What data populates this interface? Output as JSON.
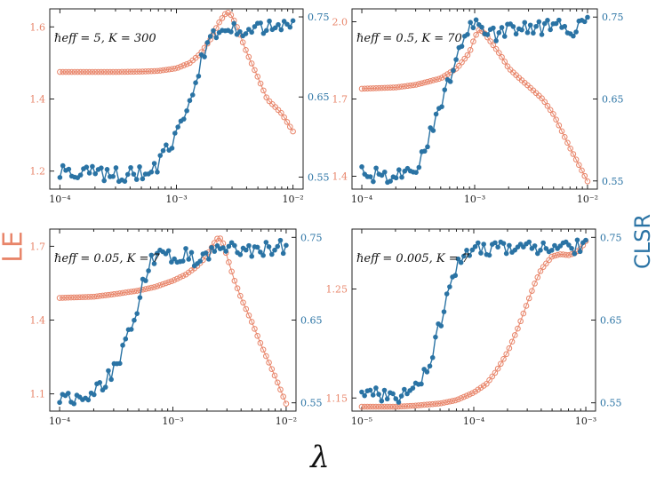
{
  "figure": {
    "ylabel_left": "LE",
    "ylabel_right": "CLSR",
    "xlabel": "λ",
    "colors": {
      "le": "#e8856a",
      "clsr": "#2a73a4"
    }
  },
  "chart_data": [
    {
      "type": "line",
      "title": "ℏeff = 5, K = 300",
      "xscale": "log",
      "xlim": [
        0.0001,
        0.01
      ],
      "xticks": [
        {
          "v": 0.0001,
          "l": "10⁻⁴"
        },
        {
          "v": 0.001,
          "l": "10⁻³"
        },
        {
          "v": 0.01,
          "l": "10⁻²"
        }
      ],
      "ylim_left": [
        1.15,
        1.65
      ],
      "yticks_left": [
        {
          "v": 1.2,
          "l": "1.2"
        },
        {
          "v": 1.4,
          "l": "1.4"
        },
        {
          "v": 1.6,
          "l": "1.6"
        }
      ],
      "ylim_right": [
        0.535,
        0.76
      ],
      "yticks_right": [
        {
          "v": 0.55,
          "l": "0.55"
        },
        {
          "v": 0.65,
          "l": "0.65"
        },
        {
          "v": 0.75,
          "l": "0.75"
        }
      ],
      "series": [
        {
          "key": "LE",
          "axis": "left",
          "marker": "open-circle",
          "x": [
            0.0001,
            0.0002,
            0.0003,
            0.0005,
            0.0007,
            0.001,
            0.0013,
            0.0016,
            0.002,
            0.0023,
            0.0026,
            0.0028,
            0.003,
            0.0033,
            0.004,
            0.005,
            0.006,
            0.008,
            0.01
          ],
          "y": [
            1.475,
            1.475,
            1.475,
            1.476,
            1.478,
            1.485,
            1.5,
            1.525,
            1.57,
            1.61,
            1.635,
            1.64,
            1.63,
            1.6,
            1.53,
            1.46,
            1.4,
            1.36,
            1.31
          ]
        },
        {
          "key": "CLSR",
          "axis": "right",
          "marker": "filled-circle",
          "x": [
            0.0001,
            0.00013,
            0.00018,
            0.00025,
            0.00035,
            0.0005,
            0.0006,
            0.0007,
            0.0008,
            0.0009,
            0.001,
            0.0012,
            0.0014,
            0.0016,
            0.0018,
            0.002,
            0.0025,
            0.003,
            0.004,
            0.005,
            0.006,
            0.008,
            0.01
          ],
          "y": [
            0.556,
            0.558,
            0.555,
            0.554,
            0.553,
            0.554,
            0.556,
            0.565,
            0.58,
            0.59,
            0.6,
            0.625,
            0.66,
            0.69,
            0.71,
            0.725,
            0.735,
            0.738,
            0.734,
            0.738,
            0.736,
            0.737,
            0.745
          ]
        }
      ]
    },
    {
      "type": "line",
      "title": "ℏeff = 0.5, K = 70",
      "xscale": "log",
      "xlim": [
        0.0001,
        0.01
      ],
      "xticks": [
        {
          "v": 0.0001,
          "l": "10⁻⁴"
        },
        {
          "v": 0.001,
          "l": "10⁻³"
        },
        {
          "v": 0.01,
          "l": "10⁻²"
        }
      ],
      "ylim_left": [
        1.35,
        2.05
      ],
      "yticks_left": [
        {
          "v": 1.4,
          "l": "1.4"
        },
        {
          "v": 1.7,
          "l": "1.7"
        },
        {
          "v": 2.0,
          "l": "2.0"
        }
      ],
      "ylim_right": [
        0.54,
        0.76
      ],
      "yticks_right": [
        {
          "v": 0.55,
          "l": "0.55"
        },
        {
          "v": 0.65,
          "l": "0.65"
        },
        {
          "v": 0.75,
          "l": "0.75"
        }
      ],
      "series": [
        {
          "key": "LE",
          "axis": "left",
          "marker": "open-circle",
          "x": [
            0.0001,
            0.0002,
            0.0003,
            0.0005,
            0.0007,
            0.0009,
            0.001,
            0.0011,
            0.0012,
            0.0014,
            0.0017,
            0.002,
            0.0025,
            0.003,
            0.004,
            0.005,
            0.007,
            0.01
          ],
          "y": [
            1.74,
            1.745,
            1.755,
            1.78,
            1.82,
            1.88,
            1.94,
            1.97,
            1.96,
            1.92,
            1.87,
            1.82,
            1.78,
            1.75,
            1.7,
            1.64,
            1.51,
            1.38
          ]
        },
        {
          "key": "CLSR",
          "axis": "right",
          "marker": "filled-circle",
          "x": [
            0.0001,
            0.00013,
            0.00018,
            0.00025,
            0.0003,
            0.00035,
            0.0004,
            0.00045,
            0.0005,
            0.0006,
            0.0007,
            0.0008,
            0.0009,
            0.001,
            0.0012,
            0.0015,
            0.002,
            0.003,
            0.004,
            0.006,
            0.008,
            0.01
          ],
          "y": [
            0.562,
            0.557,
            0.556,
            0.558,
            0.565,
            0.585,
            0.605,
            0.625,
            0.645,
            0.675,
            0.705,
            0.725,
            0.735,
            0.74,
            0.732,
            0.728,
            0.733,
            0.735,
            0.737,
            0.738,
            0.735,
            0.75
          ]
        }
      ]
    },
    {
      "type": "line",
      "title": "ℏeff = 0.05, K = 7",
      "xscale": "log",
      "xlim": [
        0.0001,
        0.01
      ],
      "xticks": [
        {
          "v": 0.0001,
          "l": "10⁻⁴"
        },
        {
          "v": 0.001,
          "l": "10⁻³"
        },
        {
          "v": 0.01,
          "l": "10⁻²"
        }
      ],
      "ylim_left": [
        1.03,
        1.77
      ],
      "yticks_left": [
        {
          "v": 1.1,
          "l": "1.1"
        },
        {
          "v": 1.4,
          "l": "1.4"
        },
        {
          "v": 1.7,
          "l": "1.7"
        }
      ],
      "ylim_right": [
        0.54,
        0.76
      ],
      "yticks_right": [
        {
          "v": 0.55,
          "l": "0.55"
        },
        {
          "v": 0.65,
          "l": "0.65"
        },
        {
          "v": 0.75,
          "l": "0.75"
        }
      ],
      "series": [
        {
          "key": "LE",
          "axis": "left",
          "marker": "open-circle",
          "x": [
            0.0001,
            0.0002,
            0.0003,
            0.0005,
            0.0007,
            0.001,
            0.0013,
            0.0016,
            0.0019,
            0.0021,
            0.0023,
            0.0025,
            0.0027,
            0.003,
            0.0035,
            0.004,
            0.005,
            0.006,
            0.008,
            0.01
          ],
          "y": [
            1.49,
            1.495,
            1.505,
            1.52,
            1.535,
            1.56,
            1.585,
            1.615,
            1.65,
            1.68,
            1.71,
            1.735,
            1.73,
            1.66,
            1.56,
            1.49,
            1.39,
            1.3,
            1.17,
            1.06
          ]
        },
        {
          "key": "CLSR",
          "axis": "right",
          "marker": "filled-circle",
          "x": [
            0.0001,
            0.00013,
            0.00016,
            0.0002,
            0.00025,
            0.0003,
            0.00035,
            0.0004,
            0.00045,
            0.0005,
            0.00055,
            0.0006,
            0.0007,
            0.0008,
            0.001,
            0.0013,
            0.0016,
            0.002,
            0.0025,
            0.003,
            0.004,
            0.005,
            0.007,
            0.01
          ],
          "y": [
            0.555,
            0.557,
            0.558,
            0.565,
            0.575,
            0.59,
            0.61,
            0.63,
            0.65,
            0.675,
            0.695,
            0.715,
            0.725,
            0.728,
            0.726,
            0.731,
            0.722,
            0.728,
            0.74,
            0.736,
            0.734,
            0.736,
            0.737,
            0.74
          ]
        }
      ]
    },
    {
      "type": "line",
      "title": "ℏeff = 0.005, K = 7",
      "xscale": "log",
      "xlim": [
        1e-05,
        0.001
      ],
      "xticks": [
        {
          "v": 1e-05,
          "l": "10⁻⁵"
        },
        {
          "v": 0.0001,
          "l": "10⁻⁴"
        },
        {
          "v": 0.001,
          "l": "10⁻³"
        }
      ],
      "ylim_left": [
        1.138,
        1.305
      ],
      "yticks_left": [
        {
          "v": 1.15,
          "l": "1.15"
        },
        {
          "v": 1.25,
          "l": "1.25"
        }
      ],
      "ylim_right": [
        0.54,
        0.76
      ],
      "yticks_right": [
        {
          "v": 0.55,
          "l": "0.55"
        },
        {
          "v": 0.65,
          "l": "0.65"
        },
        {
          "v": 0.75,
          "l": "0.75"
        }
      ],
      "series": [
        {
          "key": "LE",
          "axis": "left",
          "marker": "open-circle",
          "x": [
            1e-05,
            2e-05,
            3e-05,
            5e-05,
            7e-05,
            0.0001,
            0.00013,
            0.00016,
            0.0002,
            0.00025,
            0.0003,
            0.00035,
            0.0004,
            0.0005,
            0.0006,
            0.0007,
            0.0008,
            0.0009,
            0.001
          ],
          "y": [
            1.142,
            1.142,
            1.143,
            1.145,
            1.148,
            1.155,
            1.163,
            1.175,
            1.192,
            1.215,
            1.237,
            1.255,
            1.268,
            1.28,
            1.282,
            1.281,
            1.283,
            1.287,
            1.294
          ]
        },
        {
          "key": "CLSR",
          "axis": "right",
          "marker": "filled-circle",
          "x": [
            1e-05,
            1.3e-05,
            1.6e-05,
            2e-05,
            2.5e-05,
            3e-05,
            3.5e-05,
            4e-05,
            4.5e-05,
            5e-05,
            5.5e-05,
            6e-05,
            7e-05,
            8e-05,
            0.0001,
            0.00013,
            0.00016,
            0.0002,
            0.0003,
            0.0004,
            0.0005,
            0.0007,
            0.001
          ],
          "y": [
            0.565,
            0.56,
            0.557,
            0.555,
            0.558,
            0.565,
            0.58,
            0.6,
            0.62,
            0.645,
            0.67,
            0.69,
            0.71,
            0.728,
            0.735,
            0.737,
            0.735,
            0.738,
            0.736,
            0.74,
            0.738,
            0.737,
            0.742
          ]
        }
      ]
    }
  ]
}
